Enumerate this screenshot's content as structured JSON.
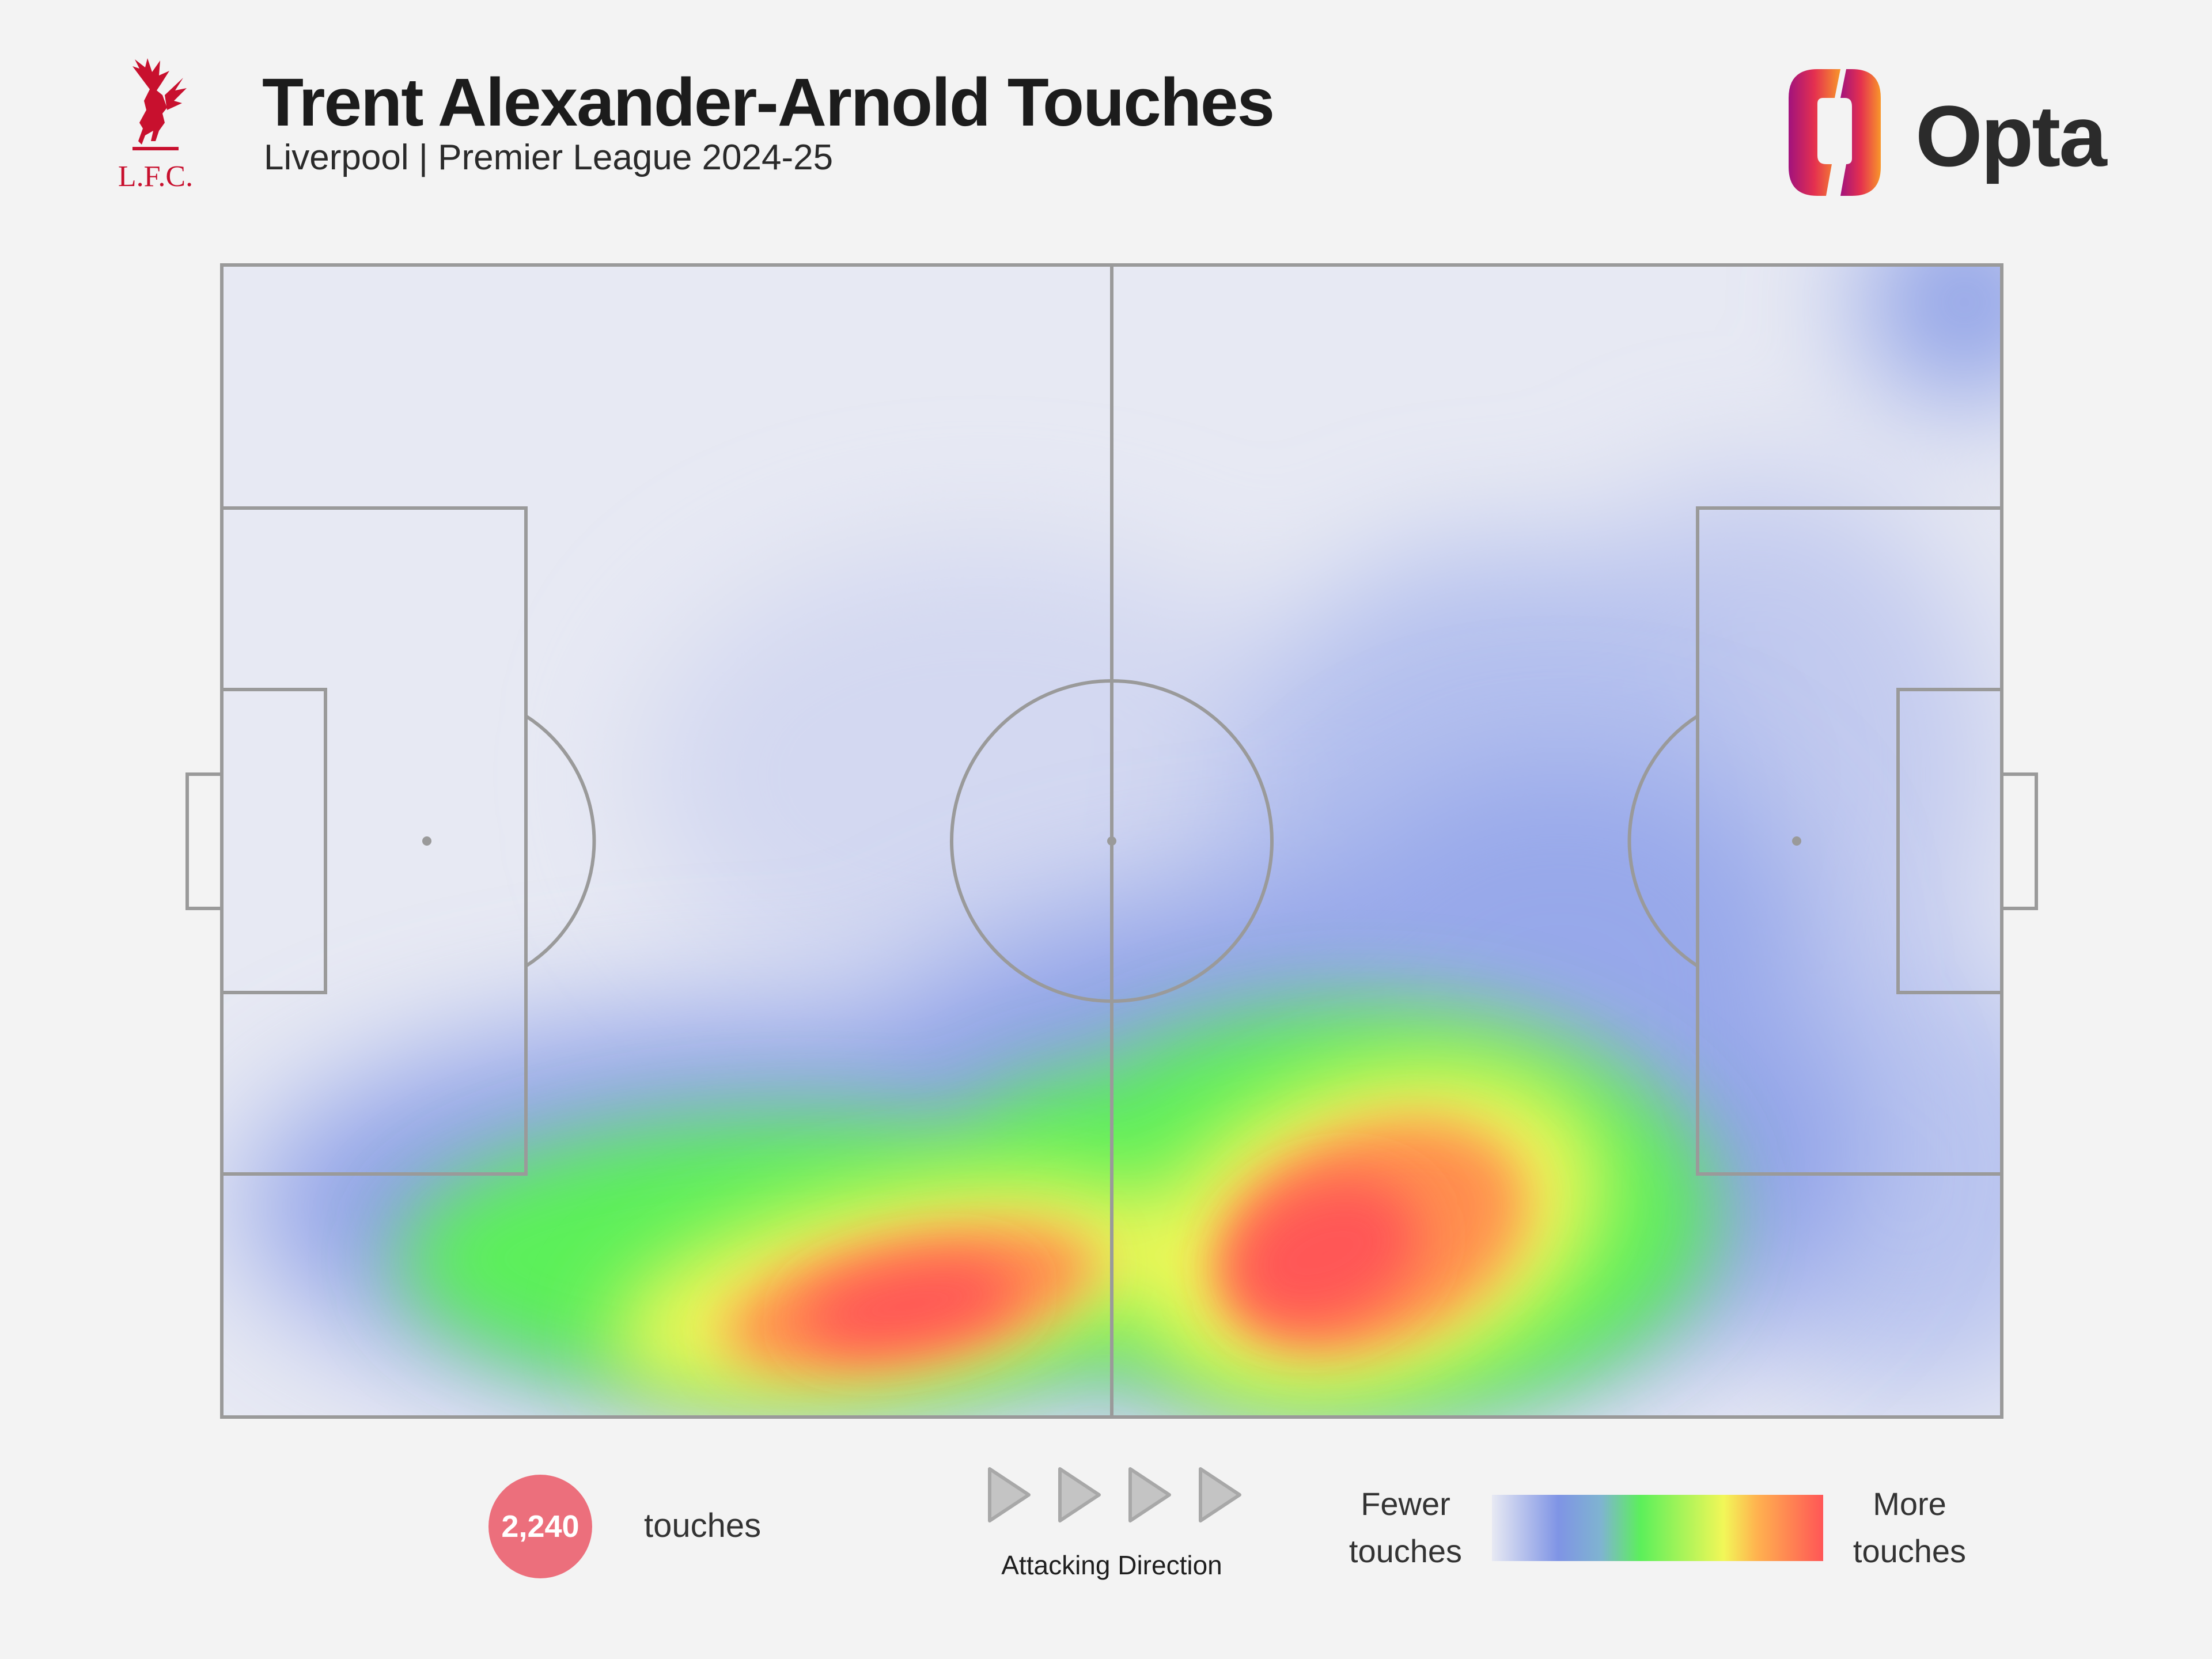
{
  "header": {
    "title": "Trent Alexander-Arnold Touches",
    "subtitle": "Liverpool | Premier League 2024-25",
    "club_crest": {
      "icon": "liverbird-crest-icon",
      "text": "L.F.C.",
      "color": "#c8102e"
    },
    "brand": {
      "wordmark": "Opta",
      "icon": "opta-logo-icon"
    }
  },
  "footer": {
    "touch_count": "2,240",
    "touch_label": "touches",
    "attacking_direction": "Attacking Direction",
    "legend_low": [
      "Fewer",
      "touches"
    ],
    "legend_high": [
      "More",
      "touches"
    ]
  },
  "colors": {
    "background": "#f3f3f3",
    "pitch_lines": "#9a9a9a",
    "badge": "#ec6f7c",
    "scale": [
      "#e7e9f3",
      "#7f94e5",
      "#5cf05a",
      "#f2f758",
      "#ff5656"
    ]
  },
  "chart_data": {
    "type": "heatmap",
    "title": "Trent Alexander-Arnold Touches",
    "subtitle": "Liverpool | Premier League 2024-25",
    "total_touches": 2240,
    "pitch": "full pitch, attacking left to right",
    "legend": {
      "low": "Fewer touches",
      "high": "More touches",
      "placement": "bottom"
    },
    "hotspots_note": "intensity 0-1 relative; x = % of pitch length from own goal, y = % of pitch width from top touchline",
    "hotspots": [
      {
        "x": 32,
        "y": 91,
        "intensity": 1.0
      },
      {
        "x": 61,
        "y": 85,
        "intensity": 1.0
      },
      {
        "x": 50,
        "y": 85,
        "intensity": 0.6
      },
      {
        "x": 18,
        "y": 88,
        "intensity": 0.5
      },
      {
        "x": 75,
        "y": 88,
        "intensity": 0.5
      },
      {
        "x": 42,
        "y": 75,
        "intensity": 0.35
      },
      {
        "x": 68,
        "y": 65,
        "intensity": 0.3
      },
      {
        "x": 99,
        "y": 4,
        "intensity": 0.25
      },
      {
        "x": 25,
        "y": 40,
        "intensity": 0.08
      },
      {
        "x": 70,
        "y": 30,
        "intensity": 0.08
      }
    ]
  }
}
